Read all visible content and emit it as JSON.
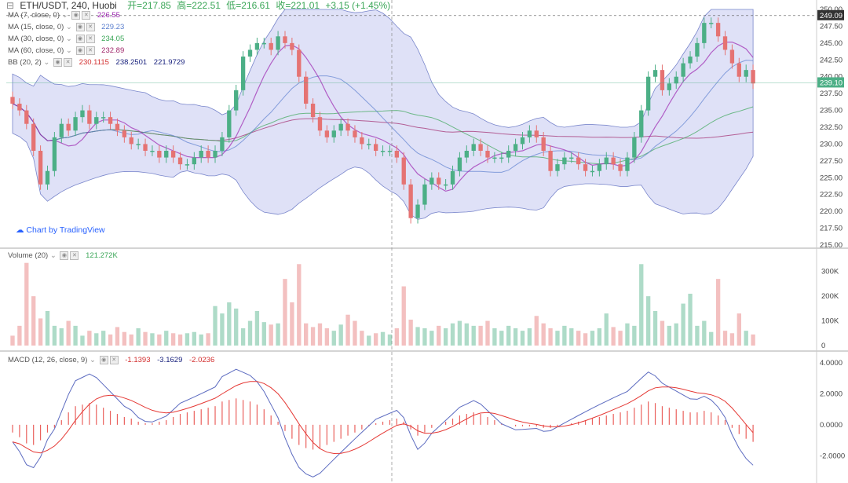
{
  "header": {
    "symbol": "ETH/USDT, 240, Huobi",
    "open": "开=217.85",
    "high": "高=222.51",
    "low": "低=216.61",
    "close": "收=221.01",
    "change": "+3.15 (+1.45%)"
  },
  "indicators": [
    {
      "label": "MA (7, close, 0)",
      "value": "226.55",
      "color": "#9c27b0"
    },
    {
      "label": "MA (15, close, 0)",
      "value": "229.23",
      "color": "#5b7fce"
    },
    {
      "label": "MA (30, close, 0)",
      "value": "234.05",
      "color": "#3aa657"
    },
    {
      "label": "MA (60, close, 0)",
      "value": "232.89",
      "color": "#a0276b"
    },
    {
      "label": "BB (20, 2)",
      "values": [
        "230.1115",
        "238.2501",
        "221.9729"
      ],
      "colors": [
        "#d32f2f",
        "#1a237e",
        "#1a237e"
      ]
    }
  ],
  "volume_panel": {
    "label": "Volume (20)",
    "value": "121.272K",
    "value_color": "#3aa657"
  },
  "macd_panel": {
    "label": "MACD (12, 26, close, 9)",
    "values": [
      "-1.1393",
      "-3.1629",
      "-2.0236"
    ],
    "colors": [
      "#d32f2f",
      "#1a237e",
      "#d32f2f"
    ]
  },
  "watermark": "Chart by TradingView",
  "colors": {
    "up": "#4caf86",
    "down": "#e57373",
    "bb_fill": "#c5c8f0",
    "macd_line": "#5c6bc0",
    "signal_line": "#e53935"
  },
  "chart_data": {
    "type": "candlestick",
    "price_axis": {
      "min": 215,
      "max": 250,
      "ticks": [
        "215.00",
        "217.50",
        "220.00",
        "222.50",
        "225.00",
        "227.50",
        "230.00",
        "232.50",
        "235.00",
        "237.50",
        "240.00",
        "242.50",
        "245.00",
        "247.50",
        "250.00"
      ]
    },
    "last_price": "239.10",
    "high_marker": "249.09",
    "volume_axis": {
      "ticks": [
        "0",
        "100K",
        "200K",
        "300K"
      ]
    },
    "macd_axis": {
      "ticks": [
        "-2.0000",
        "0.0000",
        "2.0000",
        "4.0000"
      ]
    },
    "closes": [
      236,
      235,
      233,
      229,
      224,
      226,
      231,
      233,
      232,
      234,
      235,
      233,
      234,
      234,
      233,
      232,
      231,
      230,
      230,
      229,
      229,
      228,
      229,
      228,
      227,
      227,
      228,
      229,
      228,
      229,
      231,
      235,
      238,
      243,
      244,
      245,
      245,
      244,
      246,
      245,
      244,
      240,
      236,
      234,
      232,
      231,
      232,
      233,
      232,
      231,
      230,
      230,
      229,
      229,
      229,
      228,
      224,
      219,
      221,
      224,
      225,
      224,
      224,
      226,
      228,
      229,
      230,
      229,
      228,
      228,
      228,
      229,
      230,
      231,
      232,
      231,
      229,
      226,
      227,
      228,
      228,
      227,
      226,
      226,
      227,
      228,
      227,
      226,
      228,
      231,
      235,
      240,
      241,
      238,
      239,
      240,
      242,
      243,
      245,
      248,
      248,
      246,
      244,
      242,
      240,
      241,
      239
    ],
    "volumes": [
      40,
      80,
      335,
      200,
      110,
      140,
      80,
      70,
      100,
      80,
      40,
      60,
      50,
      60,
      45,
      75,
      55,
      45,
      70,
      55,
      50,
      45,
      60,
      50,
      45,
      50,
      55,
      45,
      50,
      160,
      130,
      175,
      150,
      70,
      100,
      140,
      95,
      85,
      90,
      270,
      175,
      330,
      90,
      75,
      90,
      70,
      60,
      85,
      125,
      100,
      60,
      40,
      50,
      55,
      45,
      70,
      240,
      105,
      75,
      70,
      60,
      80,
      70,
      90,
      100,
      90,
      80,
      80,
      100,
      70,
      60,
      80,
      70,
      60,
      70,
      120,
      90,
      70,
      60,
      80,
      70,
      60,
      50,
      60,
      70,
      130,
      75,
      60,
      90,
      80,
      330,
      200,
      140,
      100,
      80,
      90,
      170,
      210,
      80,
      100,
      55,
      270,
      60,
      50,
      130,
      60,
      45
    ],
    "macd": [
      -0.5,
      -0.8,
      -1.2,
      -1.3,
      -1.0,
      -0.5,
      -0.2,
      0.3,
      0.8,
      1.2,
      1.3,
      1.4,
      1.3,
      1.1,
      0.9,
      0.7,
      0.5,
      0.4,
      0.2,
      0.1,
      0.1,
      0.2,
      0.3,
      0.5,
      0.7,
      0.8,
      0.9,
      1.0,
      1.1,
      1.2,
      1.5,
      1.6,
      1.7,
      1.6,
      1.5,
      1.3,
      1.0,
      0.6,
      0.2,
      -0.4,
      -0.9,
      -1.3,
      -1.5,
      -1.6,
      -1.5,
      -1.3,
      -1.1,
      -0.9,
      -0.7,
      -0.5,
      -0.3,
      -0.1,
      0.1,
      0.2,
      0.3,
      0.4,
      0.2,
      -0.3,
      -0.7,
      -0.5,
      -0.2,
      0.0,
      0.2,
      0.4,
      0.6,
      0.7,
      0.8,
      0.7,
      0.5,
      0.3,
      0.1,
      0.0,
      -0.1,
      -0.1,
      -0.1,
      -0.1,
      -0.2,
      -0.2,
      -0.1,
      0.0,
      0.1,
      0.2,
      0.3,
      0.4,
      0.5,
      0.6,
      0.7,
      0.8,
      0.9,
      1.1,
      1.3,
      1.5,
      1.4,
      1.2,
      1.1,
      1.0,
      0.9,
      0.8,
      0.8,
      0.9,
      0.8,
      0.6,
      0.3,
      -0.2,
      -0.6,
      -0.9,
      -1.1
    ]
  }
}
